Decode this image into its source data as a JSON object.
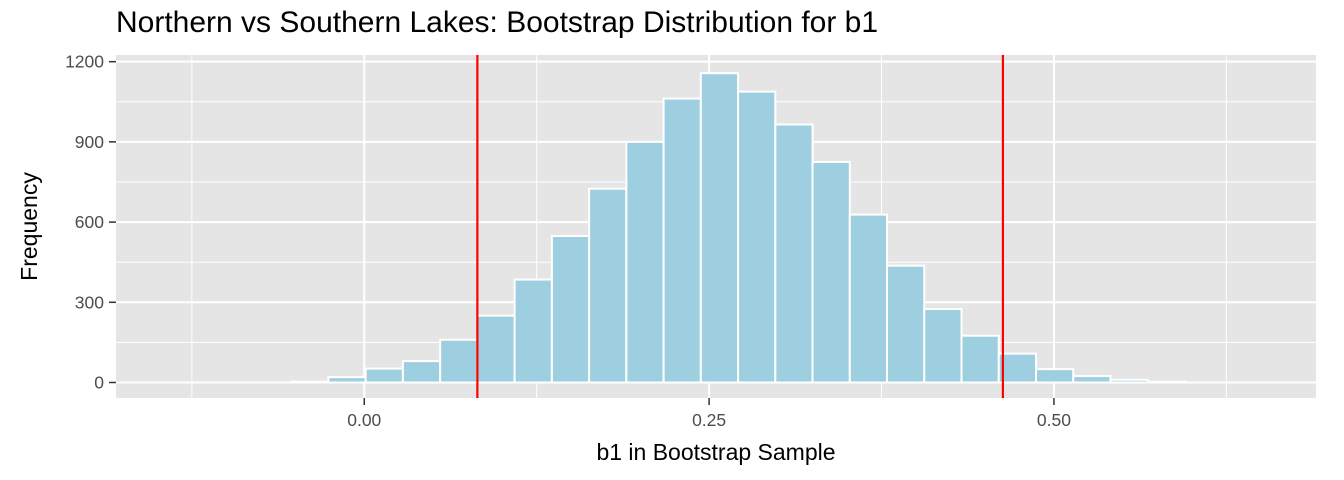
{
  "chart_data": {
    "type": "bar",
    "title": "Northern vs Southern Lakes: Bootstrap Distribution for b1",
    "xlabel": "b1 in Bootstrap Sample",
    "ylabel": "Frequency",
    "xlim": [
      -0.18,
      0.69
    ],
    "ylim": [
      -58,
      1225
    ],
    "x_ticks": [
      0.0,
      0.25,
      0.5
    ],
    "x_tick_labels": [
      "0.00",
      "0.25",
      "0.50"
    ],
    "y_ticks": [
      0,
      300,
      600,
      900,
      1200
    ],
    "y_tick_labels": [
      "0",
      "300",
      "600",
      "900",
      "1200"
    ],
    "bin_width": 0.027,
    "bins": [
      {
        "x": -0.0395,
        "count": 3
      },
      {
        "x": -0.0125,
        "count": 20
      },
      {
        "x": 0.0145,
        "count": 52
      },
      {
        "x": 0.0415,
        "count": 80
      },
      {
        "x": 0.0685,
        "count": 160
      },
      {
        "x": 0.0955,
        "count": 250
      },
      {
        "x": 0.1225,
        "count": 385
      },
      {
        "x": 0.1495,
        "count": 548
      },
      {
        "x": 0.1765,
        "count": 725
      },
      {
        "x": 0.2035,
        "count": 900
      },
      {
        "x": 0.2305,
        "count": 1062
      },
      {
        "x": 0.2575,
        "count": 1157
      },
      {
        "x": 0.2845,
        "count": 1088
      },
      {
        "x": 0.3115,
        "count": 965
      },
      {
        "x": 0.3385,
        "count": 825
      },
      {
        "x": 0.3655,
        "count": 628
      },
      {
        "x": 0.3925,
        "count": 437
      },
      {
        "x": 0.4195,
        "count": 275
      },
      {
        "x": 0.4465,
        "count": 175
      },
      {
        "x": 0.4735,
        "count": 108
      },
      {
        "x": 0.5005,
        "count": 50
      },
      {
        "x": 0.5275,
        "count": 24
      },
      {
        "x": 0.5545,
        "count": 10
      },
      {
        "x": 0.5815,
        "count": 3
      }
    ],
    "vlines": [
      0.082,
      0.463
    ],
    "grid": true,
    "colors": {
      "panel": "#e5e5e5",
      "grid": "#ffffff",
      "bar_fill": "#9ecfe0",
      "bar_outline": "#ffffff",
      "vline": "#ff0000",
      "tick_text": "#4d4d4d",
      "tick_mark": "#333333"
    }
  }
}
